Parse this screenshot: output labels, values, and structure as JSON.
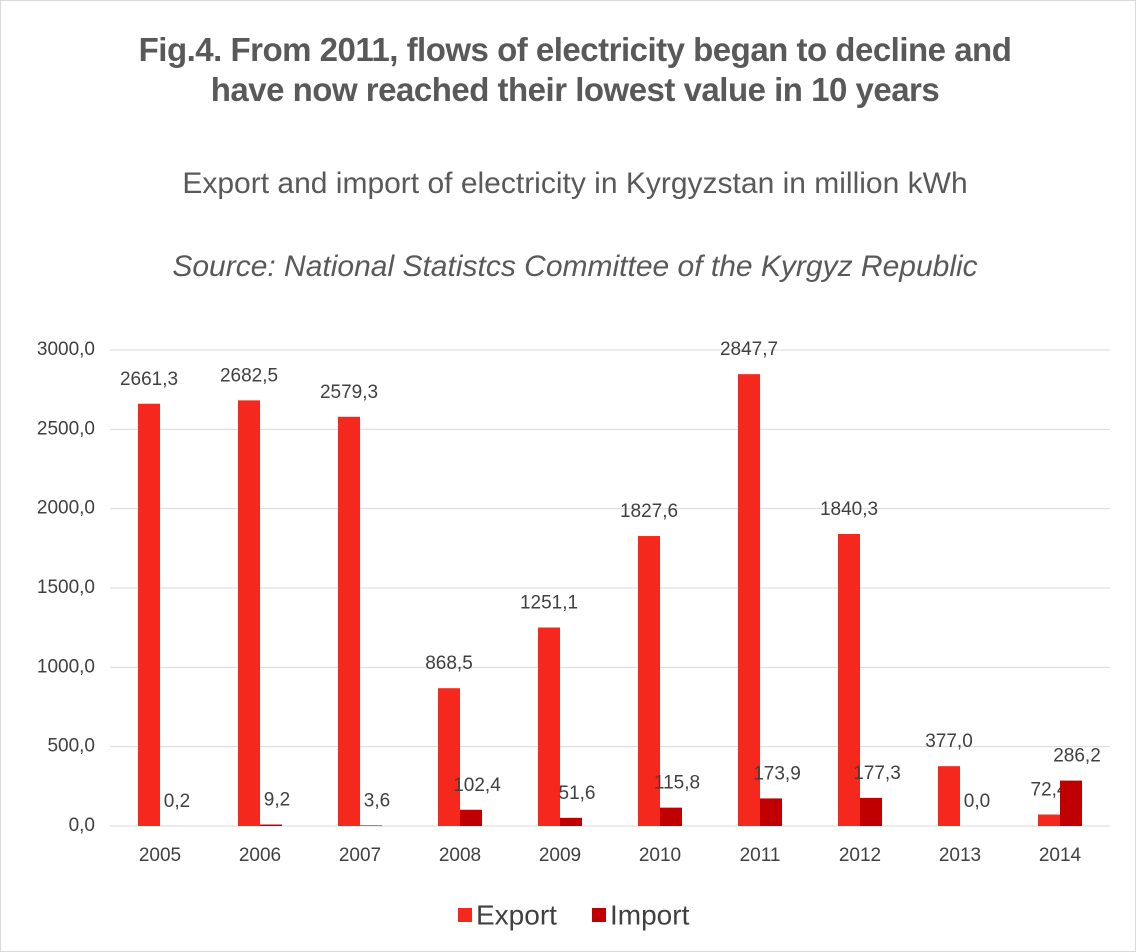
{
  "chart_data": {
    "type": "bar",
    "title": "Fig.4. From 2011, flows of electricity began to decline and have now reached their lowest value in 10 years",
    "subtitle": "Export and import of electricity in Kyrgyzstan in million kWh",
    "source": "Source: National Statistcs Committee of the Kyrgyz Republic",
    "categories": [
      "2005",
      "2006",
      "2007",
      "2008",
      "2009",
      "2010",
      "2011",
      "2012",
      "2013",
      "2014"
    ],
    "series": [
      {
        "name": "Export",
        "color": "#f5281e",
        "values": [
          2661.3,
          2682.5,
          2579.3,
          868.5,
          1251.1,
          1827.6,
          2847.7,
          1840.3,
          377.0,
          72.4
        ],
        "value_labels": [
          "2661,3",
          "2682,5",
          "2579,3",
          "868,5",
          "1251,1",
          "1827,6",
          "2847,7",
          "1840,3",
          "377,0",
          "72,4"
        ]
      },
      {
        "name": "Import",
        "color": "#c00000",
        "values": [
          0.2,
          9.2,
          3.6,
          102.4,
          51.6,
          115.8,
          173.9,
          177.3,
          0.0,
          286.2
        ],
        "value_labels": [
          "0,2",
          "9,2",
          "3,6",
          "102,4",
          "51,6",
          "115,8",
          "173,9",
          "177,3",
          "0,0",
          "286,2"
        ]
      }
    ],
    "ylim": [
      0,
      3000
    ],
    "yticks": [
      {
        "value": 0,
        "label": "0,0"
      },
      {
        "value": 500,
        "label": "500,0"
      },
      {
        "value": 1000,
        "label": "1000,0"
      },
      {
        "value": 1500,
        "label": "1500,0"
      },
      {
        "value": 2000,
        "label": "2000,0"
      },
      {
        "value": 2500,
        "label": "2500,0"
      },
      {
        "value": 3000,
        "label": "3000,0"
      }
    ],
    "grid": true,
    "legend": "bottom"
  }
}
